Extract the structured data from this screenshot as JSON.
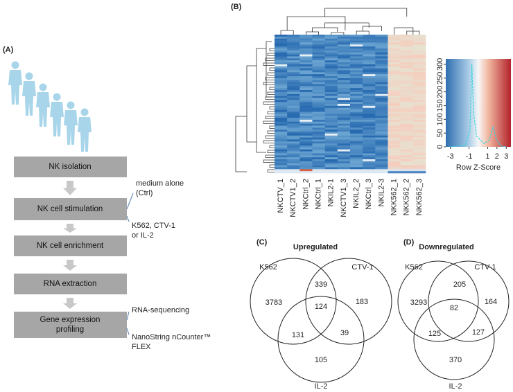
{
  "panels": {
    "a": {
      "label": "(A)",
      "steps": [
        [
          "NK isolation"
        ],
        [
          "NK cell stimulation"
        ],
        [
          "NK cell enrichment"
        ],
        [
          "RNA extraction"
        ],
        [
          "Gene expression",
          "profiling"
        ]
      ],
      "notes": [
        [
          "medium alone",
          "(Ctrl)"
        ],
        [
          "K562, CTV-1",
          "or IL-2"
        ],
        [
          "RNA-sequencing"
        ],
        [
          "NanoString nCounter™",
          "FLEX"
        ]
      ]
    },
    "b": {
      "label": "(B)",
      "columns": [
        "NKCTV_1",
        "NKCTV1_2",
        "NKCtrl_2",
        "NKCtrl_1",
        "NKIL2-1",
        "NKCTV1_3",
        "NKIL2_2",
        "NKCtrl_3",
        "NKIL2-3",
        "NKK562_1",
        "NKK562_2",
        "NKK562_3"
      ],
      "key": {
        "xlabel": "Row Z-Score",
        "xlim": [
          -3.5,
          3.5
        ],
        "xticks": [
          -3,
          -1,
          1,
          2,
          3
        ],
        "ylim": [
          0,
          320
        ],
        "yticks": [
          0,
          50,
          100,
          150,
          200,
          250,
          300
        ]
      }
    },
    "c": {
      "label": "(C)",
      "title": "Upregulated",
      "sets": [
        "K562",
        "CTV-1",
        "IL-2"
      ],
      "counts": [
        3783,
        339,
        183,
        124,
        131,
        39,
        105
      ]
    },
    "d": {
      "label": "(D)",
      "title": "Downregulated",
      "sets": [
        "K562",
        "CTV-1",
        "IL-2"
      ],
      "counts": [
        3293,
        205,
        164,
        82,
        125,
        127,
        370
      ]
    }
  }
}
